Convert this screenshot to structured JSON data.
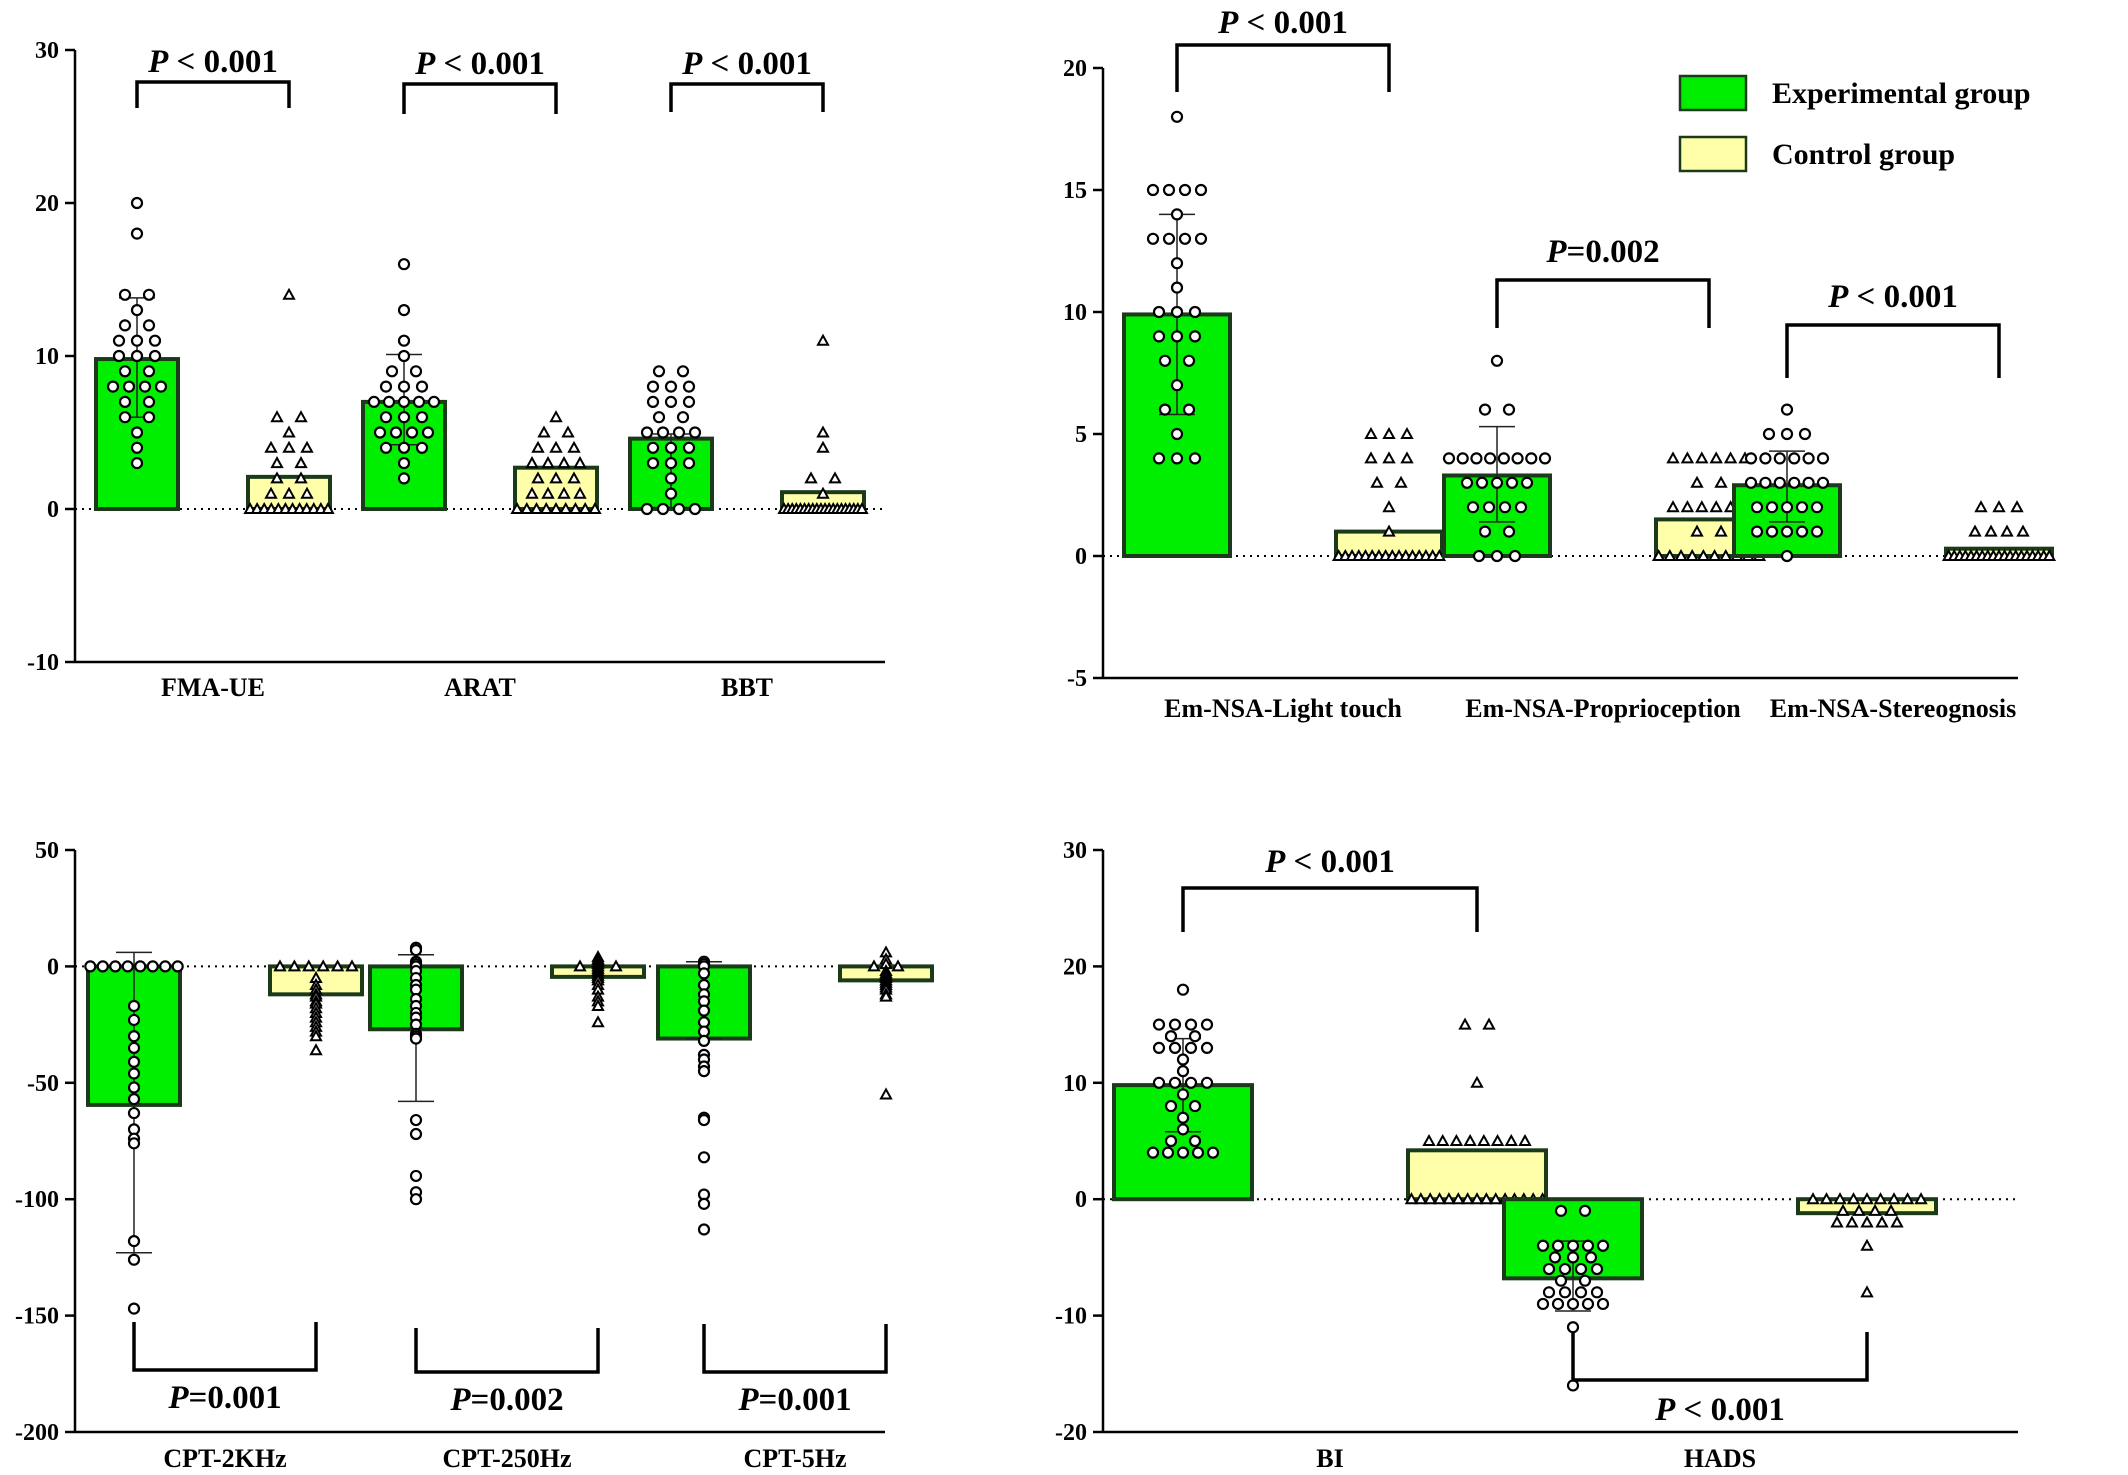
{
  "colors": {
    "experimental": "#00ee00",
    "control": "#ffffaa",
    "outline": "#1a3a1a",
    "axis": "#000000",
    "marker_fill": "#ffffff"
  },
  "legend": {
    "experimental": "Experimental group",
    "control": "Control group"
  },
  "chart_data": [
    {
      "type": "bar",
      "panel": "top-left",
      "series": [
        {
          "name": "Experimental group"
        },
        {
          "name": "Control group"
        }
      ],
      "ylim": [
        -10,
        30
      ],
      "yticks": [
        -10,
        0,
        10,
        20,
        30
      ],
      "ytick_labels": [
        "-10",
        "0",
        "10",
        "20",
        "30"
      ],
      "categories": [
        "FMA-UE",
        "ARAT",
        "BBT"
      ],
      "groups": [
        {
          "label": "FMA-UE",
          "exp": {
            "mean": 9.8,
            "err_low": 6,
            "err_high": 13.8,
            "points": [
              20,
              18,
              14,
              14,
              13,
              12,
              12,
              11,
              11,
              11,
              10,
              10,
              10,
              9,
              9,
              8,
              8,
              8,
              8,
              7,
              7,
              6,
              6,
              5,
              4,
              3
            ]
          },
          "ctl": {
            "mean": 2.1,
            "points": [
              14,
              6,
              6,
              5,
              4,
              4,
              4,
              3,
              3,
              2,
              2,
              1,
              1,
              1,
              0,
              0,
              0,
              0,
              0,
              0,
              0,
              0,
              0,
              0,
              0,
              0
            ]
          },
          "p": {
            "prefix": "P",
            "text": " < 0.001",
            "position": "above"
          }
        },
        {
          "label": "ARAT",
          "exp": {
            "mean": 7.0,
            "err_low": 4.2,
            "err_high": 10.1,
            "points": [
              16,
              13,
              11,
              10,
              9,
              9,
              8,
              8,
              8,
              7,
              7,
              7,
              7,
              7,
              6,
              6,
              6,
              5,
              5,
              5,
              5,
              4,
              4,
              4,
              3,
              2
            ]
          },
          "ctl": {
            "mean": 2.7,
            "points": [
              6,
              5,
              5,
              4,
              4,
              4,
              3,
              3,
              3,
              3,
              2,
              2,
              2,
              1,
              1,
              1,
              1,
              0,
              0,
              0,
              0,
              0,
              0,
              0,
              0,
              0
            ]
          },
          "p": {
            "prefix": "P",
            "text": " < 0.001",
            "position": "above"
          }
        },
        {
          "label": "BBT",
          "exp": {
            "mean": 4.6,
            "err_low": 0.1,
            "err_high": 4.9,
            "points": [
              9,
              9,
              8,
              8,
              8,
              7,
              7,
              7,
              6,
              6,
              5,
              5,
              5,
              5,
              4,
              4,
              4,
              3,
              3,
              3,
              2,
              1,
              0,
              0,
              0,
              0
            ]
          },
          "ctl": {
            "mean": 1.1,
            "points": [
              11,
              5,
              4,
              2,
              2,
              1,
              0,
              0,
              0,
              0,
              0,
              0,
              0,
              0,
              0,
              0,
              0,
              0,
              0,
              0,
              0,
              0,
              0,
              0,
              0,
              0
            ]
          },
          "p": {
            "prefix": "P",
            "text": " < 0.001",
            "position": "above"
          }
        }
      ]
    },
    {
      "type": "bar",
      "panel": "top-right",
      "series": [
        {
          "name": "Experimental group"
        },
        {
          "name": "Control group"
        }
      ],
      "legend_position": "top-right",
      "ylim": [
        -5,
        20
      ],
      "yticks": [
        -5,
        0,
        5,
        10,
        15,
        20
      ],
      "ytick_labels": [
        "-5",
        "0",
        "5",
        "10",
        "15",
        "20"
      ],
      "categories": [
        "Em-NSA-Light touch",
        "Em-NSA-Proprioception",
        "Em-NSA-Stereognosis"
      ],
      "groups": [
        {
          "label": "Em-NSA-Light touch",
          "exp": {
            "mean": 9.9,
            "err_low": 5.8,
            "err_high": 14,
            "points": [
              18,
              15,
              15,
              15,
              15,
              14,
              13,
              13,
              13,
              13,
              12,
              11,
              10,
              10,
              10,
              9,
              9,
              9,
              8,
              8,
              7,
              6,
              6,
              5,
              4,
              4,
              4
            ]
          },
          "ctl": {
            "mean": 1.0,
            "points": [
              5,
              5,
              5,
              4,
              4,
              4,
              3,
              3,
              2,
              1,
              0,
              0,
              0,
              0,
              0,
              0,
              0,
              0,
              0,
              0,
              0,
              0,
              0,
              0,
              0,
              0
            ]
          },
          "p": {
            "prefix": "P",
            "text": " < 0.001",
            "position": "above"
          }
        },
        {
          "label": "Em-NSA-Proprioception",
          "exp": {
            "mean": 3.3,
            "err_low": 1.4,
            "err_high": 5.3,
            "points": [
              8,
              6,
              6,
              4,
              4,
              4,
              4,
              4,
              4,
              4,
              4,
              3,
              3,
              3,
              3,
              3,
              2,
              2,
              2,
              2,
              1,
              1,
              0,
              0,
              0
            ]
          },
          "ctl": {
            "mean": 1.5,
            "points": [
              4,
              4,
              4,
              4,
              4,
              4,
              3,
              3,
              2,
              2,
              2,
              2,
              2,
              2,
              1,
              1,
              0,
              0,
              0,
              0,
              0,
              0,
              0,
              0,
              0,
              0
            ]
          },
          "p": {
            "prefix": "P",
            "text": "=0.002",
            "position": "above"
          }
        },
        {
          "label": "Em-NSA-Stereognosis",
          "exp": {
            "mean": 2.9,
            "err_low": 1.4,
            "err_high": 4.3,
            "points": [
              6,
              5,
              5,
              5,
              4,
              4,
              4,
              4,
              4,
              4,
              3,
              3,
              3,
              3,
              3,
              3,
              2,
              2,
              2,
              2,
              2,
              1,
              1,
              1,
              1,
              1,
              0
            ]
          },
          "ctl": {
            "mean": 0.3,
            "points": [
              2,
              2,
              2,
              1,
              1,
              1,
              1,
              0,
              0,
              0,
              0,
              0,
              0,
              0,
              0,
              0,
              0,
              0,
              0,
              0,
              0,
              0,
              0,
              0,
              0,
              0
            ]
          },
          "p": {
            "prefix": "P",
            "text": " < 0.001",
            "position": "above"
          }
        }
      ]
    },
    {
      "type": "bar",
      "panel": "bottom-left",
      "series": [
        {
          "name": "Experimental group"
        },
        {
          "name": "Control group"
        }
      ],
      "ylim": [
        -200,
        50
      ],
      "yticks": [
        -200,
        -150,
        -100,
        -50,
        0,
        50
      ],
      "ytick_labels": [
        "-200",
        "-150",
        "-100",
        "-50",
        "0",
        "50"
      ],
      "categories": [
        "CPT-2KHz",
        "CPT-250Hz",
        "CPT-5Hz"
      ],
      "groups": [
        {
          "label": "CPT-2KHz",
          "exp": {
            "mean": -59.5,
            "err_low": -123,
            "err_high": 6,
            "points": [
              0,
              0,
              0,
              0,
              0,
              0,
              0,
              0,
              -17,
              -23,
              -30,
              -35,
              -41,
              -46,
              -52,
              -57,
              -63,
              -70,
              -74,
              -76,
              -118,
              -126,
              -147
            ]
          },
          "ctl": {
            "mean": -12,
            "points": [
              0,
              0,
              0,
              0,
              0,
              0,
              -5,
              -8,
              -10,
              -12,
              -13,
              -15,
              -16,
              -18,
              -20,
              -22,
              -24,
              -26,
              -28,
              -30,
              -36
            ]
          },
          "p": {
            "prefix": "P",
            "text": "=0.001",
            "position": "below"
          }
        },
        {
          "label": "CPT-250Hz",
          "exp": {
            "mean": -27,
            "err_low": -58,
            "err_high": 5,
            "points": [
              8,
              7,
              2,
              1,
              0,
              -2,
              -5,
              -8,
              -10,
              -14,
              -17,
              -20,
              -22,
              -25,
              -29,
              -30,
              -31,
              -66,
              -72,
              -90,
              -97,
              -100
            ]
          },
          "ctl": {
            "mean": -4.5,
            "points": [
              4,
              3,
              2,
              1,
              0,
              0,
              0,
              -1,
              -2,
              -3,
              -4,
              -5,
              -6,
              -8,
              -10,
              -13,
              -15,
              -17,
              -24
            ]
          },
          "p": {
            "prefix": "P",
            "text": "=0.002",
            "position": "below"
          }
        },
        {
          "label": "CPT-5Hz",
          "exp": {
            "mean": -31,
            "err_low": -31,
            "err_high": 2,
            "points": [
              2,
              1,
              0,
              -3,
              -8,
              -12,
              -15,
              -19,
              -24,
              -28,
              -32,
              -38,
              -40,
              -43,
              -45,
              -65,
              -66,
              -82,
              -98,
              -102,
              -113
            ]
          },
          "ctl": {
            "mean": -6,
            "points": [
              6,
              3,
              1,
              0,
              0,
              -2,
              -3,
              -4,
              -5,
              -6,
              -7,
              -8,
              -9,
              -10,
              -12,
              -13,
              -55
            ]
          },
          "p": {
            "prefix": "P",
            "text": "=0.001",
            "position": "below"
          }
        }
      ]
    },
    {
      "type": "bar",
      "panel": "bottom-right",
      "series": [
        {
          "name": "Experimental group"
        },
        {
          "name": "Control group"
        }
      ],
      "ylim": [
        -20,
        30
      ],
      "yticks": [
        -20,
        -10,
        0,
        10,
        20,
        30
      ],
      "ytick_labels": [
        "-20",
        "-10",
        "0",
        "10",
        "20",
        "30"
      ],
      "categories": [
        "BI",
        "HADS"
      ],
      "groups": [
        {
          "label": "BI",
          "exp": {
            "mean": 9.8,
            "err_low": 5.8,
            "err_high": 13.8,
            "points": [
              18,
              15,
              15,
              15,
              15,
              14,
              14,
              13,
              13,
              13,
              13,
              12,
              11,
              10,
              10,
              10,
              10,
              9,
              8,
              8,
              7,
              6,
              5,
              5,
              4,
              4,
              4,
              4,
              4
            ]
          },
          "ctl": {
            "mean": 4.2,
            "points": [
              15,
              15,
              10,
              5,
              5,
              5,
              5,
              5,
              5,
              5,
              5,
              0,
              0,
              0,
              0,
              0,
              0,
              0,
              0,
              0,
              0,
              0,
              0,
              0,
              0,
              0
            ]
          },
          "p": {
            "prefix": "P",
            "text": " < 0.001",
            "position": "above"
          }
        },
        {
          "label": "HADS",
          "exp": {
            "mean": -6.8,
            "err_low": -9.6,
            "err_high": -3.6,
            "points": [
              -1,
              -1,
              -4,
              -4,
              -4,
              -4,
              -4,
              -5,
              -5,
              -5,
              -6,
              -6,
              -6,
              -6,
              -7,
              -7,
              -8,
              -8,
              -8,
              -8,
              -9,
              -9,
              -9,
              -9,
              -9,
              -11,
              -16
            ]
          },
          "ctl": {
            "mean": -1.2,
            "points": [
              0,
              0,
              0,
              0,
              0,
              0,
              0,
              0,
              0,
              -1,
              -1,
              -1,
              -1,
              -2,
              -2,
              -2,
              -2,
              -2,
              -4,
              -8
            ]
          },
          "p": {
            "prefix": "P",
            "text": " < 0.001",
            "position": "below"
          }
        }
      ]
    }
  ]
}
